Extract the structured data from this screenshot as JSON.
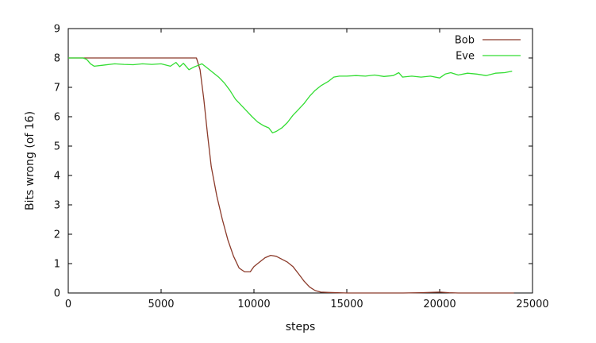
{
  "chart_data": {
    "type": "line",
    "title": "",
    "xlabel": "steps",
    "ylabel": "Bits wrong (of 16)",
    "xlim": [
      0,
      25000
    ],
    "ylim": [
      0,
      9
    ],
    "xticks": [
      0,
      5000,
      10000,
      15000,
      20000,
      25000
    ],
    "yticks": [
      0,
      1,
      2,
      3,
      4,
      5,
      6,
      7,
      8,
      9
    ],
    "xtick_labels": [
      "0",
      "5000",
      "10000",
      "15000",
      "20000",
      "25000"
    ],
    "ytick_labels": [
      "0",
      "1",
      "2",
      "3",
      "4",
      "5",
      "6",
      "7",
      "8",
      "9"
    ],
    "grid": false,
    "legend_position": "top-right",
    "series": [
      {
        "name": "Bob",
        "color": "#8b3a2a",
        "x": [
          0,
          1000,
          2000,
          3000,
          4000,
          5000,
          6000,
          6900,
          7100,
          7300,
          7500,
          7700,
          8000,
          8300,
          8600,
          8900,
          9200,
          9500,
          9800,
          10000,
          10300,
          10600,
          10900,
          11200,
          11500,
          11800,
          12100,
          12400,
          12700,
          13000,
          13300,
          13600,
          14000,
          14500,
          15000,
          16000,
          17000,
          18000,
          19000,
          20000,
          20500,
          21000,
          22000,
          23000,
          24000
        ],
        "y": [
          8.0,
          8.0,
          8.0,
          8.0,
          8.0,
          8.0,
          8.0,
          8.0,
          7.6,
          6.6,
          5.4,
          4.3,
          3.3,
          2.5,
          1.8,
          1.25,
          0.85,
          0.72,
          0.72,
          0.9,
          1.05,
          1.2,
          1.28,
          1.25,
          1.15,
          1.05,
          0.9,
          0.65,
          0.4,
          0.2,
          0.08,
          0.03,
          0.02,
          0.01,
          0.0,
          0.0,
          0.0,
          0.0,
          0.01,
          0.03,
          0.01,
          0.0,
          0.0,
          0.0,
          0.0
        ]
      },
      {
        "name": "Eve",
        "color": "#33dd33",
        "x": [
          0,
          800,
          1000,
          1200,
          1400,
          1800,
          2500,
          3000,
          3500,
          4000,
          4500,
          5000,
          5500,
          5800,
          6000,
          6200,
          6500,
          6800,
          7000,
          7200,
          7500,
          7800,
          8100,
          8400,
          8700,
          9000,
          9300,
          9600,
          9900,
          10200,
          10500,
          10800,
          11000,
          11200,
          11500,
          11800,
          12100,
          12400,
          12700,
          13000,
          13300,
          13600,
          14000,
          14300,
          14600,
          15000,
          15500,
          16000,
          16500,
          17000,
          17500,
          17800,
          18000,
          18500,
          19000,
          19500,
          20000,
          20300,
          20600,
          21000,
          21500,
          22000,
          22500,
          23000,
          23500,
          23900
        ],
        "y": [
          8.0,
          8.0,
          7.95,
          7.8,
          7.72,
          7.75,
          7.8,
          7.78,
          7.77,
          7.8,
          7.78,
          7.8,
          7.72,
          7.85,
          7.7,
          7.82,
          7.6,
          7.7,
          7.75,
          7.8,
          7.65,
          7.5,
          7.35,
          7.15,
          6.9,
          6.6,
          6.4,
          6.2,
          6.0,
          5.82,
          5.7,
          5.62,
          5.45,
          5.5,
          5.62,
          5.8,
          6.05,
          6.25,
          6.45,
          6.7,
          6.9,
          7.05,
          7.2,
          7.35,
          7.38,
          7.38,
          7.4,
          7.38,
          7.42,
          7.37,
          7.4,
          7.5,
          7.35,
          7.38,
          7.35,
          7.38,
          7.32,
          7.45,
          7.5,
          7.42,
          7.48,
          7.45,
          7.4,
          7.48,
          7.5,
          7.55
        ]
      }
    ]
  }
}
